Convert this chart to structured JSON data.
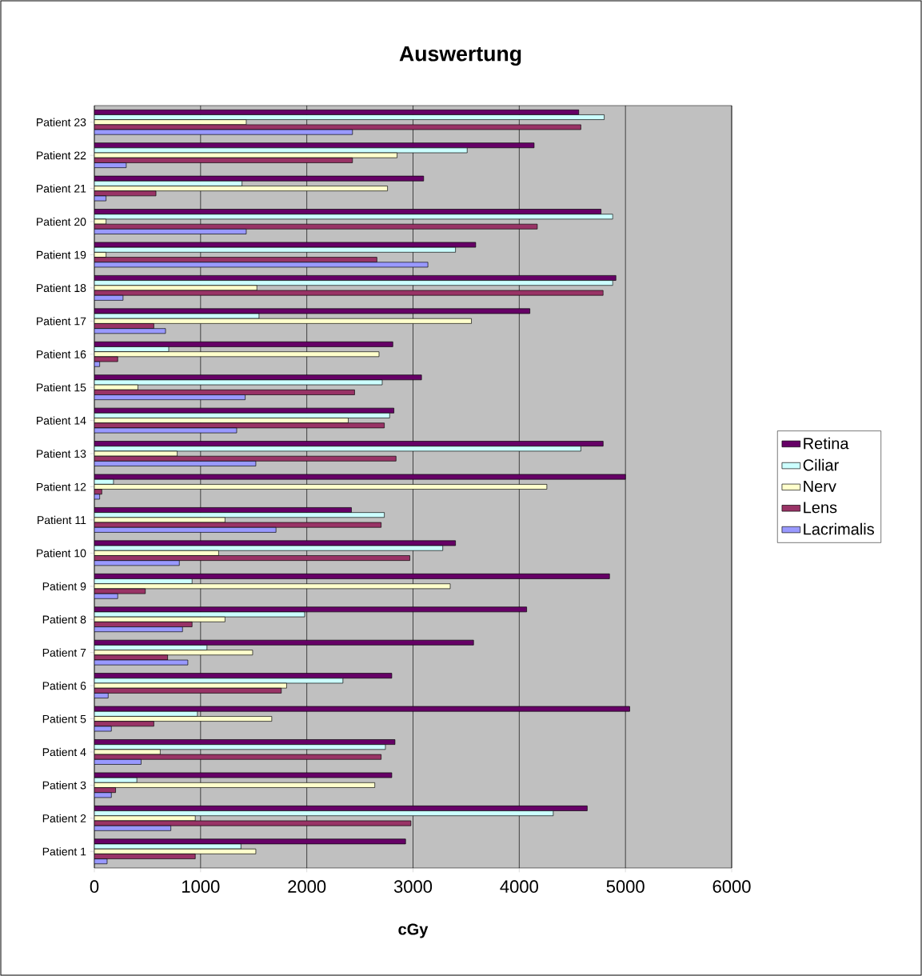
{
  "chart_data": {
    "type": "bar",
    "orientation": "horizontal",
    "title": "Auswertung",
    "xlabel": "cGy",
    "categories": [
      "Patient 23",
      "Patient 22",
      "Patient 21",
      "Patient 20",
      "Patient 19",
      "Patient 18",
      "Patient 17",
      "Patient 16",
      "Patient 15",
      "Patient 14",
      "Patient 13",
      "Patient 12",
      "Patient 11",
      "Patient 10",
      "Patient 9",
      "Patient 8",
      "Patient 7",
      "Patient 6",
      "Patient 5",
      "Patient 4",
      "Patient 3",
      "Patient 2",
      "Patient 1"
    ],
    "series": [
      {
        "name": "Retina",
        "color": "#660066",
        "values": [
          4560,
          4140,
          3100,
          4770,
          3590,
          4910,
          4100,
          2810,
          3080,
          2820,
          4790,
          5000,
          2420,
          3400,
          4850,
          4070,
          3570,
          2800,
          5040,
          2830,
          2800,
          4640,
          2930
        ]
      },
      {
        "name": "Ciliar",
        "color": "#ccffff",
        "values": [
          4800,
          3510,
          1390,
          4880,
          3400,
          4880,
          1550,
          700,
          2710,
          2780,
          4580,
          180,
          2730,
          3280,
          920,
          1980,
          1060,
          2340,
          970,
          2740,
          400,
          4320,
          1380
        ]
      },
      {
        "name": "Nerv",
        "color": "#ffffcc",
        "values": [
          1430,
          2850,
          2760,
          110,
          110,
          1530,
          3550,
          2680,
          410,
          2390,
          780,
          4260,
          1230,
          1170,
          3350,
          1230,
          1490,
          1810,
          1670,
          620,
          2640,
          950,
          1520
        ]
      },
      {
        "name": "Lens",
        "color": "#993366",
        "values": [
          4580,
          2430,
          580,
          4170,
          2660,
          4790,
          560,
          220,
          2450,
          2730,
          2840,
          70,
          2700,
          2970,
          480,
          920,
          690,
          1760,
          560,
          2700,
          200,
          2980,
          950
        ]
      },
      {
        "name": "Lacrimalis",
        "color": "#9999ff",
        "values": [
          2430,
          300,
          110,
          1430,
          3140,
          270,
          670,
          50,
          1420,
          1340,
          1520,
          50,
          1710,
          800,
          220,
          830,
          880,
          130,
          160,
          440,
          160,
          720,
          120
        ]
      }
    ],
    "xlim": [
      0,
      6000
    ],
    "xticks": [
      0,
      1000,
      2000,
      3000,
      4000,
      5000,
      6000
    ],
    "grid": "x",
    "legend": "right"
  }
}
